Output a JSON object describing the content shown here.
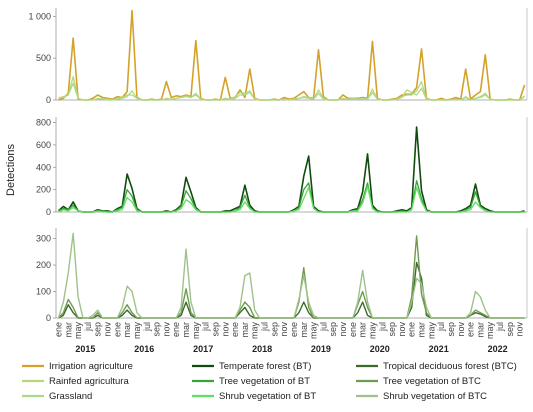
{
  "chart_data": {
    "type": "line",
    "ylabel": "Detections",
    "x_month_labels": [
      "ene",
      "mar",
      "may",
      "jul",
      "sep",
      "nov"
    ],
    "years": [
      "2015",
      "2016",
      "2017",
      "2018",
      "2019",
      "2020",
      "2021",
      "2022"
    ],
    "month_count": 96,
    "panels": [
      {
        "id": "agriculture",
        "ylim": [
          0,
          1100
        ],
        "yticks": [
          0,
          500,
          1000
        ],
        "ytick_labels": [
          "0",
          "500",
          "1 000"
        ],
        "series": [
          {
            "name": "Irrigation agriculture",
            "color": "#d4a12a",
            "width": 1.6,
            "values": [
              0,
              20,
              80,
              740,
              10,
              0,
              0,
              20,
              60,
              30,
              20,
              10,
              40,
              30,
              100,
              1070,
              30,
              0,
              0,
              10,
              0,
              10,
              220,
              30,
              50,
              40,
              60,
              40,
              710,
              20,
              0,
              0,
              10,
              0,
              270,
              20,
              30,
              120,
              30,
              370,
              20,
              0,
              0,
              0,
              10,
              0,
              30,
              10,
              20,
              60,
              100,
              30,
              20,
              600,
              40,
              0,
              0,
              0,
              60,
              20,
              20,
              20,
              30,
              20,
              700,
              20,
              0,
              0,
              10,
              20,
              60,
              70,
              70,
              150,
              610,
              20,
              0,
              0,
              20,
              0,
              10,
              30,
              10,
              370,
              10,
              60,
              100,
              540,
              10,
              0,
              0,
              0,
              10,
              0,
              0,
              180
            ]
          },
          {
            "name": "Rainfed agricultura",
            "color": "#b7d77a",
            "width": 1.3,
            "values": [
              20,
              40,
              60,
              280,
              20,
              0,
              0,
              0,
              10,
              20,
              0,
              0,
              10,
              20,
              40,
              110,
              20,
              0,
              0,
              0,
              0,
              0,
              20,
              10,
              20,
              30,
              40,
              30,
              60,
              10,
              0,
              0,
              0,
              0,
              20,
              10,
              40,
              90,
              80,
              110,
              10,
              0,
              0,
              0,
              0,
              0,
              10,
              0,
              10,
              20,
              30,
              20,
              10,
              80,
              10,
              0,
              0,
              0,
              10,
              10,
              10,
              10,
              10,
              10,
              90,
              10,
              0,
              0,
              0,
              10,
              30,
              120,
              90,
              60,
              140,
              10,
              0,
              0,
              0,
              0,
              0,
              10,
              0,
              30,
              0,
              20,
              30,
              60,
              10,
              0,
              0,
              0,
              0,
              0,
              0,
              40
            ]
          },
          {
            "name": "Grassland",
            "color": "#a8dc8a",
            "width": 1.3,
            "values": [
              30,
              30,
              60,
              200,
              20,
              0,
              0,
              0,
              20,
              10,
              10,
              0,
              20,
              30,
              60,
              60,
              20,
              0,
              0,
              0,
              0,
              0,
              10,
              0,
              20,
              30,
              50,
              30,
              80,
              10,
              0,
              0,
              0,
              0,
              20,
              0,
              20,
              60,
              60,
              90,
              10,
              0,
              0,
              0,
              0,
              0,
              10,
              0,
              10,
              20,
              40,
              30,
              10,
              120,
              20,
              0,
              0,
              0,
              20,
              10,
              20,
              10,
              20,
              10,
              130,
              10,
              0,
              0,
              0,
              10,
              40,
              60,
              60,
              110,
              220,
              10,
              0,
              0,
              0,
              0,
              0,
              10,
              0,
              40,
              0,
              20,
              40,
              80,
              10,
              0,
              0,
              0,
              0,
              0,
              0,
              50
            ]
          }
        ]
      },
      {
        "id": "temperate",
        "ylim": [
          0,
          850
        ],
        "yticks": [
          0,
          200,
          400,
          600,
          800
        ],
        "ytick_labels": [
          "0",
          "200",
          "400",
          "600",
          "800"
        ],
        "series": [
          {
            "name": "Temperate forest (BT)",
            "color": "#0f4d0f",
            "width": 1.6,
            "values": [
              10,
              50,
              20,
              90,
              10,
              0,
              0,
              0,
              20,
              10,
              10,
              0,
              30,
              50,
              340,
              210,
              30,
              0,
              0,
              0,
              0,
              0,
              10,
              0,
              20,
              60,
              310,
              180,
              40,
              0,
              0,
              0,
              0,
              0,
              10,
              10,
              30,
              50,
              240,
              60,
              10,
              0,
              0,
              0,
              0,
              0,
              0,
              0,
              20,
              50,
              320,
              500,
              50,
              10,
              0,
              0,
              0,
              0,
              0,
              0,
              20,
              30,
              180,
              520,
              60,
              10,
              0,
              0,
              0,
              10,
              20,
              10,
              40,
              760,
              190,
              20,
              0,
              0,
              0,
              0,
              0,
              0,
              10,
              30,
              60,
              250,
              60,
              30,
              10,
              0,
              0,
              0,
              0,
              0,
              0,
              10
            ]
          },
          {
            "name": "Tree vegetation of BT",
            "color": "#3aa33a",
            "width": 1.3,
            "values": [
              10,
              30,
              20,
              60,
              10,
              0,
              0,
              0,
              10,
              10,
              0,
              0,
              20,
              40,
              200,
              140,
              20,
              0,
              0,
              0,
              0,
              0,
              0,
              0,
              10,
              50,
              190,
              120,
              30,
              0,
              0,
              0,
              0,
              0,
              0,
              0,
              10,
              40,
              150,
              40,
              0,
              0,
              0,
              0,
              0,
              0,
              0,
              0,
              10,
              40,
              200,
              260,
              40,
              0,
              0,
              0,
              0,
              0,
              0,
              0,
              10,
              20,
              110,
              260,
              40,
              0,
              0,
              0,
              0,
              0,
              10,
              0,
              30,
              280,
              120,
              10,
              0,
              0,
              0,
              0,
              0,
              0,
              0,
              20,
              40,
              180,
              50,
              10,
              0,
              0,
              0,
              0,
              0,
              0,
              0,
              0
            ]
          },
          {
            "name": "Shrub vegetation of BT",
            "color": "#5fe05f",
            "width": 1.3,
            "values": [
              0,
              20,
              10,
              40,
              10,
              0,
              0,
              0,
              10,
              0,
              0,
              0,
              10,
              20,
              130,
              90,
              10,
              0,
              0,
              0,
              0,
              0,
              0,
              0,
              10,
              30,
              110,
              80,
              20,
              0,
              0,
              0,
              0,
              0,
              0,
              0,
              10,
              20,
              90,
              30,
              0,
              0,
              0,
              0,
              0,
              0,
              0,
              0,
              10,
              20,
              120,
              220,
              30,
              0,
              0,
              0,
              0,
              0,
              0,
              0,
              10,
              10,
              80,
              230,
              30,
              0,
              0,
              0,
              0,
              0,
              0,
              0,
              20,
              220,
              90,
              10,
              0,
              0,
              0,
              0,
              0,
              0,
              0,
              10,
              20,
              90,
              40,
              10,
              0,
              0,
              0,
              0,
              0,
              0,
              0,
              0
            ]
          }
        ]
      },
      {
        "id": "tropical",
        "ylim": [
          0,
          340
        ],
        "yticks": [
          0,
          100,
          200,
          300
        ],
        "ytick_labels": [
          "0",
          "100",
          "200",
          "300"
        ],
        "series": [
          {
            "name": "Tropical deciduous forest (BTC)",
            "color": "#3e6a2c",
            "width": 1.4,
            "values": [
              0,
              10,
              50,
              20,
              0,
              0,
              0,
              0,
              10,
              0,
              0,
              0,
              0,
              10,
              30,
              10,
              0,
              0,
              0,
              0,
              0,
              0,
              0,
              0,
              0,
              10,
              60,
              10,
              0,
              0,
              0,
              0,
              0,
              0,
              0,
              0,
              0,
              20,
              40,
              10,
              0,
              0,
              0,
              0,
              0,
              0,
              0,
              0,
              0,
              20,
              60,
              20,
              0,
              0,
              0,
              0,
              0,
              0,
              0,
              0,
              0,
              20,
              60,
              10,
              0,
              0,
              0,
              0,
              0,
              0,
              0,
              0,
              40,
              210,
              150,
              10,
              0,
              0,
              0,
              0,
              0,
              0,
              0,
              0,
              10,
              20,
              15,
              5,
              0,
              0,
              0,
              0,
              0,
              0,
              0,
              0
            ]
          },
          {
            "name": "Tree vegetation of BTC",
            "color": "#6f9a52",
            "width": 1.4,
            "values": [
              0,
              20,
              70,
              40,
              0,
              0,
              0,
              0,
              20,
              0,
              0,
              0,
              0,
              20,
              50,
              20,
              0,
              0,
              0,
              0,
              0,
              0,
              0,
              0,
              0,
              20,
              110,
              20,
              0,
              0,
              0,
              0,
              0,
              0,
              0,
              0,
              0,
              30,
              60,
              40,
              0,
              0,
              0,
              0,
              0,
              0,
              0,
              0,
              0,
              60,
              190,
              40,
              0,
              0,
              0,
              0,
              0,
              0,
              0,
              0,
              0,
              50,
              100,
              40,
              0,
              0,
              0,
              0,
              0,
              0,
              0,
              0,
              80,
              310,
              90,
              20,
              0,
              0,
              0,
              0,
              0,
              0,
              0,
              0,
              10,
              30,
              20,
              10,
              0,
              0,
              0,
              0,
              0,
              0,
              0,
              0
            ]
          },
          {
            "name": "Shrub vegetation of BTC",
            "color": "#9fc28a",
            "width": 1.4,
            "values": [
              0,
              60,
              170,
              320,
              80,
              0,
              0,
              10,
              30,
              0,
              0,
              0,
              0,
              40,
              120,
              100,
              20,
              0,
              0,
              0,
              0,
              0,
              0,
              0,
              0,
              40,
              260,
              60,
              0,
              0,
              0,
              0,
              0,
              0,
              0,
              0,
              0,
              40,
              160,
              170,
              30,
              0,
              0,
              0,
              0,
              0,
              0,
              0,
              0,
              70,
              160,
              60,
              10,
              0,
              0,
              0,
              0,
              0,
              0,
              0,
              0,
              60,
              180,
              60,
              0,
              0,
              0,
              0,
              0,
              0,
              0,
              0,
              60,
              150,
              130,
              40,
              0,
              0,
              0,
              0,
              0,
              0,
              0,
              0,
              20,
              100,
              80,
              30,
              0,
              0,
              0,
              0,
              0,
              0,
              0,
              0
            ]
          }
        ]
      }
    ],
    "legend": [
      {
        "name": "Irrigation agriculture",
        "color": "#d4a12a"
      },
      {
        "name": "Temperate forest (BT)",
        "color": "#0f4d0f"
      },
      {
        "name": "Tropical deciduous forest (BTC)",
        "color": "#3e6a2c"
      },
      {
        "name": "Rainfed agricultura",
        "color": "#b7d77a"
      },
      {
        "name": "Tree vegetation of BT",
        "color": "#3aa33a"
      },
      {
        "name": "Tree vegetation of BTC",
        "color": "#6f9a52"
      },
      {
        "name": "Grassland",
        "color": "#a8dc8a"
      },
      {
        "name": "Shrub vegetation of BT",
        "color": "#5fe05f"
      },
      {
        "name": "Shrub vegetation of BTC",
        "color": "#9fc28a"
      }
    ]
  }
}
